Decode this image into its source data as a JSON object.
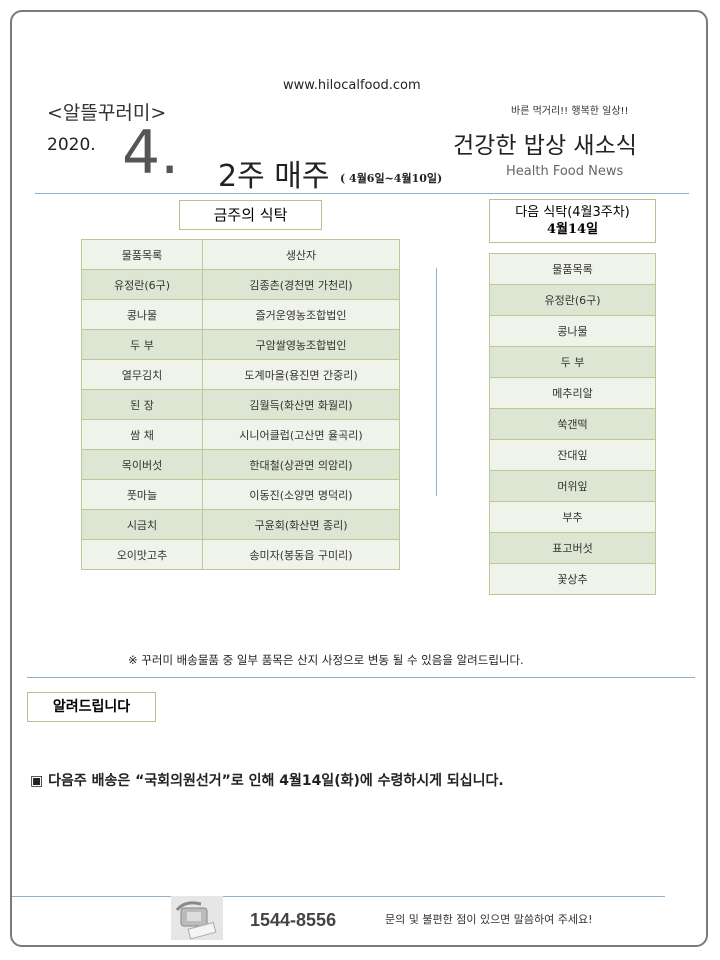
{
  "header": {
    "website": "www.hilocalfood.com",
    "brand": "<알뜰꾸러미>",
    "slogan": "바른 먹거리!! 행복한 일상!!",
    "year": "2020.",
    "month": "4.",
    "week": "2주 매주",
    "date_range": "( 4월6일~4월10일)",
    "title": "건강한 밥상 새소식",
    "subtitle": "Health Food  News"
  },
  "this_week": {
    "title": "금주의 식탁",
    "columns": [
      "물품목록",
      "생산자"
    ],
    "rows": [
      [
        "유정란(6구)",
        "김종촌(경천면 가천리)"
      ],
      [
        "콩나물",
        "즐거운영농조합법인"
      ],
      [
        "두 부",
        "구암쌀영농조합법인"
      ],
      [
        "열무김치",
        "도계마을(용진면 간중리)"
      ],
      [
        "된 장",
        "김월득(화산면 화월리)"
      ],
      [
        "쌈 채",
        "시니어클럽(고산면 율곡리)"
      ],
      [
        "목이버섯",
        "한대철(상관면 의암리)"
      ],
      [
        "풋마늘",
        "이동진(소양면 명덕리)"
      ],
      [
        "시금치",
        "구윤회(화산면 종리)"
      ],
      [
        "오이맛고추",
        "송미자(봉동읍 구미리)"
      ]
    ]
  },
  "next_week": {
    "title": "다음 식탁(4월3주차)",
    "date": "4월14일",
    "column": "물품목록",
    "items": [
      "유정란(6구)",
      "콩나물",
      "두 부",
      "메추리알",
      "쑥갠떡",
      "잔대잎",
      "머위잎",
      "부추",
      "표고버섯",
      "꽃상추"
    ]
  },
  "notice_line": "※ 꾸러미 배송물품 중 일부 품목은 산지 사정으로 변동 될 수 있음을 알려드립니다.",
  "announce": {
    "title": "알려드립니다",
    "bullet": "▣",
    "text": "다음주 배송은 “국회의원선거”로 인해 4월14일(화)에 수령하시게 되십니다."
  },
  "footer": {
    "phone": "1544-8556",
    "message": "문의 및 불편한 점이 있으면 말씀하여 주세요!",
    "icon": "telephone-icon"
  }
}
